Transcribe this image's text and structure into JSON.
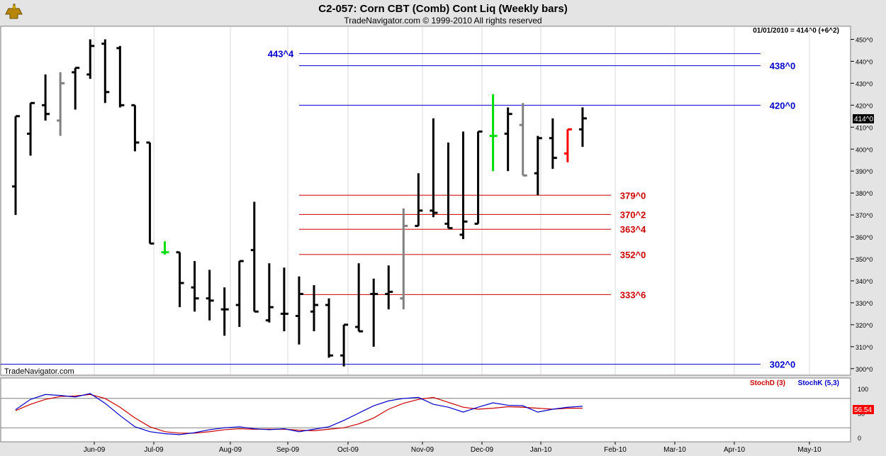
{
  "header": {
    "title": "C2-057:  Corn CBT (Comb) Cont Liq  (Weekly bars)",
    "subtitle": "TradeNavigator.com © 1999-2010 All rights reserved",
    "last_quote": "01/01/2010 = 414^0 (+6^2)",
    "watermark": "TradeNavigator.com",
    "price_tag": "414^0",
    "stoch_value": "56.54"
  },
  "colors": {
    "background": "#ffffff",
    "frame": "#e4e4e4",
    "bar": "#000000",
    "bar_gray": "#808080",
    "bar_green": "#00dd00",
    "bar_red": "#ff0000",
    "resistance_line": "#0000cc",
    "support_line": "#cc0000",
    "stoch_d": "#cc0000",
    "stoch_k": "#0000cc"
  },
  "chart_data": [
    {
      "type": "ohlc",
      "title": "Corn CBT (Comb) Cont Liq (Weekly bars)",
      "ylim": [
        298,
        455
      ],
      "y_ticks": [
        300,
        310,
        320,
        330,
        340,
        350,
        360,
        370,
        380,
        390,
        400,
        410,
        420,
        430,
        440,
        450
      ],
      "y_tick_labels": [
        "300^0",
        "310^0",
        "320^0",
        "330^0",
        "340^0",
        "350^0",
        "360^0",
        "370^0",
        "380^0",
        "390^0",
        "400^0",
        "410^0",
        "420^0",
        "430^0",
        "440^0",
        "450^0"
      ],
      "months": [
        "Jun-09",
        "Jul-09",
        "Aug-09",
        "Sep-09",
        "Oct-09",
        "Nov-09",
        "Dec-09",
        "Jan-10",
        "Feb-10",
        "Mar-10",
        "Apr-10",
        "May-10"
      ],
      "bars": [
        {
          "w": 0,
          "o": 383,
          "h": 415,
          "l": 370,
          "c": 415,
          "color": "black"
        },
        {
          "w": 1,
          "o": 407,
          "h": 421,
          "l": 397,
          "c": 421,
          "color": "black"
        },
        {
          "w": 2,
          "o": 420,
          "h": 434,
          "l": 413,
          "c": 416,
          "color": "black"
        },
        {
          "w": 3,
          "o": 413,
          "h": 435,
          "l": 406,
          "c": 430,
          "color": "gray"
        },
        {
          "w": 4,
          "o": 435,
          "h": 437,
          "l": 418,
          "c": 437,
          "color": "black"
        },
        {
          "w": 5,
          "o": 434,
          "h": 450,
          "l": 432,
          "c": 447,
          "color": "black"
        },
        {
          "w": 6,
          "o": 448,
          "h": 450,
          "l": 421,
          "c": 426,
          "color": "black"
        },
        {
          "w": 7,
          "o": 446,
          "h": 447,
          "l": 419,
          "c": 420,
          "color": "black"
        },
        {
          "w": 8,
          "o": 420,
          "h": 420,
          "l": 399,
          "c": 403,
          "color": "black"
        },
        {
          "w": 9,
          "o": 403,
          "h": 403,
          "l": 357,
          "c": 357,
          "color": "black"
        },
        {
          "w": 10,
          "o": 353,
          "h": 358,
          "l": 352,
          "c": 353,
          "color": "green"
        },
        {
          "w": 11,
          "o": 353,
          "h": 353,
          "l": 328,
          "c": 339,
          "color": "black"
        },
        {
          "w": 12,
          "o": 337,
          "h": 349,
          "l": 326,
          "c": 332,
          "color": "black"
        },
        {
          "w": 13,
          "o": 332,
          "h": 345,
          "l": 322,
          "c": 331,
          "color": "black"
        },
        {
          "w": 14,
          "o": 327,
          "h": 337,
          "l": 315,
          "c": 327,
          "color": "black"
        },
        {
          "w": 15,
          "o": 329,
          "h": 349,
          "l": 319,
          "c": 349,
          "color": "black"
        },
        {
          "w": 16,
          "o": 354,
          "h": 376,
          "l": 326,
          "c": 326,
          "color": "black"
        },
        {
          "w": 17,
          "o": 322,
          "h": 348,
          "l": 321,
          "c": 328,
          "color": "black"
        },
        {
          "w": 18,
          "o": 325,
          "h": 346,
          "l": 317,
          "c": 325,
          "color": "black"
        },
        {
          "w": 19,
          "o": 324,
          "h": 342,
          "l": 311,
          "c": 334,
          "color": "black"
        },
        {
          "w": 20,
          "o": 326,
          "h": 338,
          "l": 317,
          "c": 329,
          "color": "black"
        },
        {
          "w": 21,
          "o": 329,
          "h": 332,
          "l": 305,
          "c": 306,
          "color": "black"
        },
        {
          "w": 22,
          "o": 306,
          "h": 320,
          "l": 301,
          "c": 320,
          "color": "black"
        },
        {
          "w": 23,
          "o": 319,
          "h": 348,
          "l": 317,
          "c": 317,
          "color": "black"
        },
        {
          "w": 24,
          "o": 334,
          "h": 341,
          "l": 310,
          "c": 334,
          "color": "black"
        },
        {
          "w": 25,
          "o": 334,
          "h": 347,
          "l": 327,
          "c": 335,
          "color": "black"
        },
        {
          "w": 26,
          "o": 332,
          "h": 373,
          "l": 327,
          "c": 365,
          "color": "gray"
        },
        {
          "w": 27,
          "o": 365,
          "h": 389,
          "l": 365,
          "c": 372,
          "color": "black"
        },
        {
          "w": 28,
          "o": 372,
          "h": 414,
          "l": 369,
          "c": 371,
          "color": "black"
        },
        {
          "w": 29,
          "o": 366,
          "h": 403,
          "l": 364,
          "c": 364,
          "color": "black"
        },
        {
          "w": 30,
          "o": 361,
          "h": 408,
          "l": 359,
          "c": 367,
          "color": "black"
        },
        {
          "w": 31,
          "o": 366,
          "h": 408,
          "l": 366,
          "c": 408,
          "color": "black"
        },
        {
          "w": 32,
          "o": 406,
          "h": 425,
          "l": 390,
          "c": 406,
          "color": "green"
        },
        {
          "w": 33,
          "o": 407,
          "h": 419,
          "l": 390,
          "c": 416,
          "color": "black"
        },
        {
          "w": 34,
          "o": 411,
          "h": 421,
          "l": 388,
          "c": 388,
          "color": "gray"
        },
        {
          "w": 35,
          "o": 389,
          "h": 406,
          "l": 379,
          "c": 405,
          "color": "black"
        },
        {
          "w": 36,
          "o": 405,
          "h": 414,
          "l": 391,
          "c": 396,
          "color": "black"
        },
        {
          "w": 37,
          "o": 398,
          "h": 409,
          "l": 394,
          "c": 409,
          "color": "red"
        },
        {
          "w": 38,
          "o": 409,
          "h": 419,
          "l": 401,
          "c": 414,
          "color": "black"
        }
      ],
      "resistance_levels": [
        {
          "label": "443^4",
          "value": 443.5,
          "label_side": "left"
        },
        {
          "label": "438^0",
          "value": 438.0,
          "label_side": "right"
        },
        {
          "label": "420^0",
          "value": 420.0,
          "label_side": "right"
        },
        {
          "label": "302^0",
          "value": 302.0,
          "label_side": "right"
        }
      ],
      "support_levels": [
        {
          "label": "379^0",
          "value": 379.0
        },
        {
          "label": "370^2",
          "value": 370.25
        },
        {
          "label": "363^4",
          "value": 363.5
        },
        {
          "label": "352^0",
          "value": 352.0
        },
        {
          "label": "333^6",
          "value": 333.75
        }
      ]
    },
    {
      "type": "line",
      "legend": [
        "StochD (3)",
        "StochK (5,3)"
      ],
      "ylim": [
        0,
        100
      ],
      "y_ticks": [
        0,
        50,
        100
      ],
      "reference_lines": [
        80,
        20
      ],
      "series": [
        {
          "name": "StochD (3)",
          "values": [
            55,
            68,
            78,
            84,
            85,
            88,
            80,
            62,
            40,
            22,
            12,
            9,
            9,
            12,
            16,
            18,
            17,
            17,
            17,
            15,
            14,
            17,
            20,
            28,
            40,
            58,
            70,
            78,
            82,
            72,
            62,
            58,
            60,
            63,
            62,
            60,
            58,
            60,
            60
          ]
        },
        {
          "name": "StochK (5,3)",
          "values": [
            57,
            78,
            88,
            86,
            83,
            90,
            70,
            45,
            22,
            12,
            8,
            6,
            10,
            16,
            20,
            22,
            18,
            16,
            18,
            12,
            17,
            22,
            35,
            50,
            65,
            75,
            80,
            82,
            68,
            62,
            52,
            62,
            71,
            66,
            65,
            52,
            58,
            62,
            64
          ]
        }
      ]
    }
  ]
}
